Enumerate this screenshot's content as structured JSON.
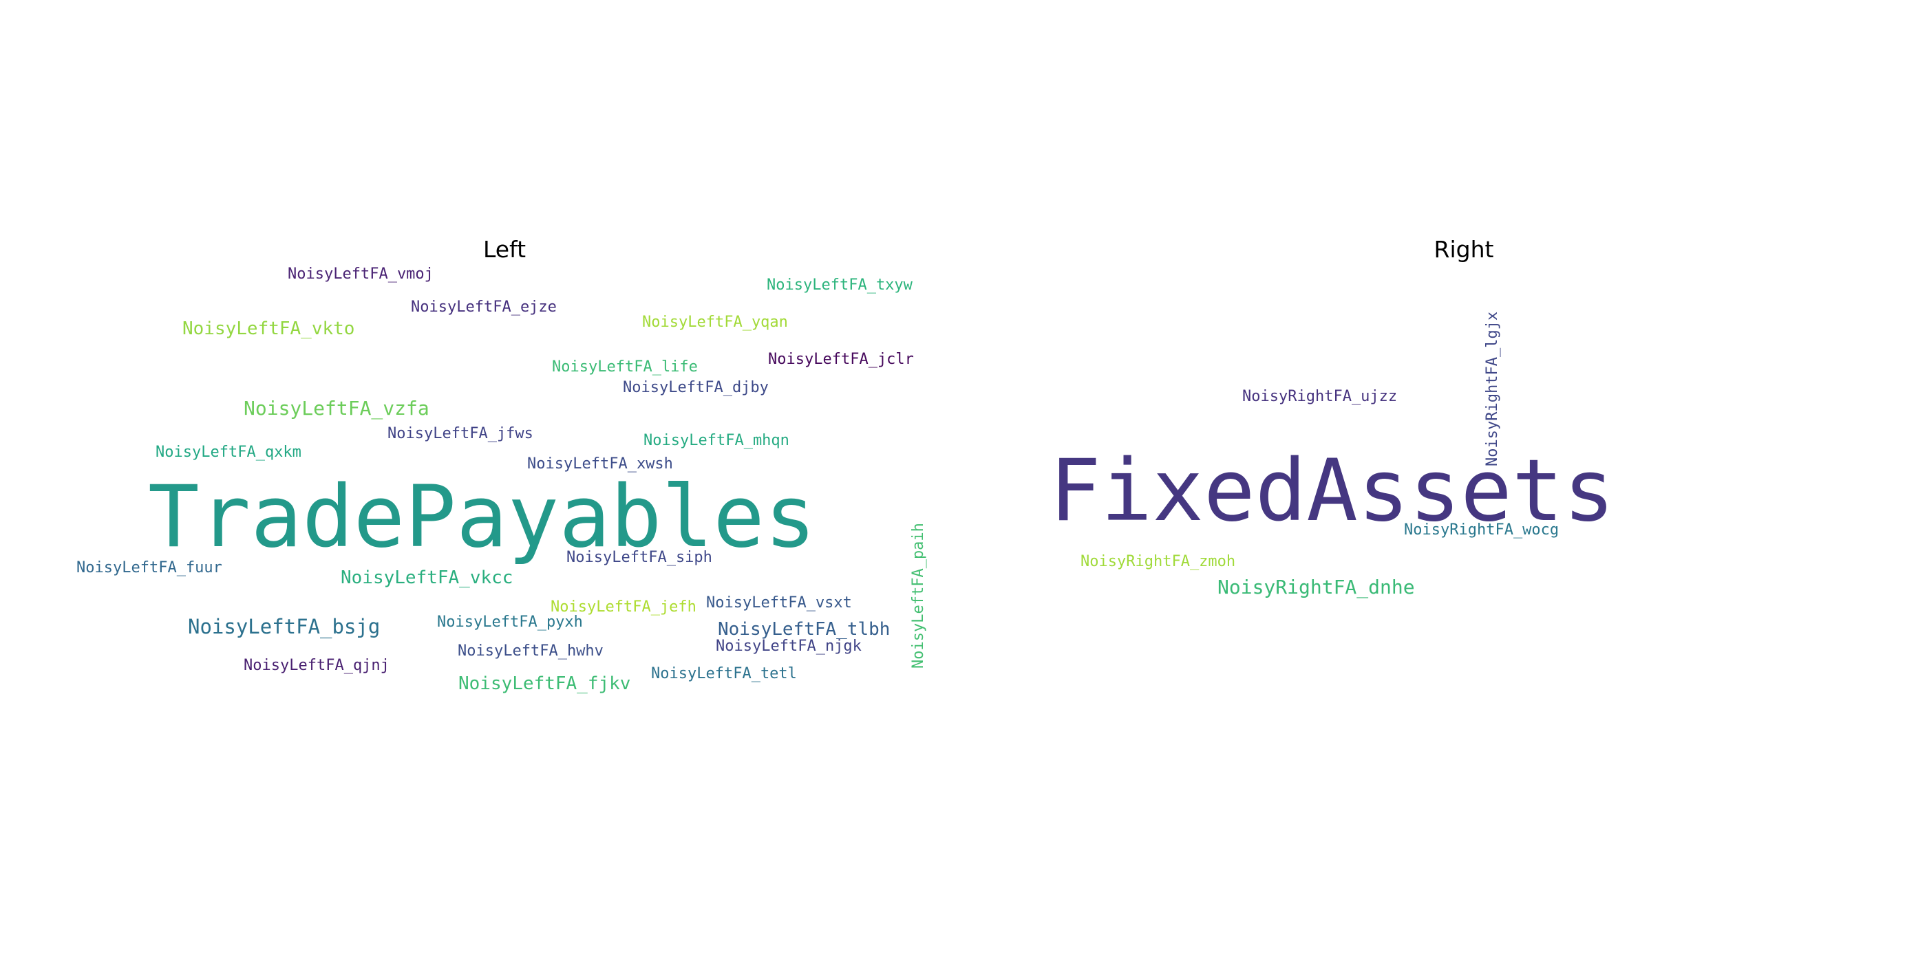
{
  "left": {
    "title": "Left",
    "words": [
      {
        "text": "TradePayables",
        "color": "#23998a"
      },
      {
        "text": "NoisyLeftFA_vmoj",
        "color": "#4a2374"
      },
      {
        "text": "NoisyLeftFA_ejze",
        "color": "#46317e"
      },
      {
        "text": "NoisyLeftFA_txyw",
        "color": "#2cb47c"
      },
      {
        "text": "NoisyLeftFA_vkto",
        "color": "#93d741"
      },
      {
        "text": "NoisyLeftFA_yqan",
        "color": "#a2da37"
      },
      {
        "text": "NoisyLeftFA_life",
        "color": "#3bbb75"
      },
      {
        "text": "NoisyLeftFA_jclr",
        "color": "#46085c"
      },
      {
        "text": "NoisyLeftFA_djby",
        "color": "#3e4a89"
      },
      {
        "text": "NoisyLeftFA_vzfa",
        "color": "#6ccd5a"
      },
      {
        "text": "NoisyLeftFA_jfws",
        "color": "#404387"
      },
      {
        "text": "NoisyLeftFA_mhqn",
        "color": "#25ab82"
      },
      {
        "text": "NoisyLeftFA_qxkm",
        "color": "#22a884"
      },
      {
        "text": "NoisyLeftFA_xwsh",
        "color": "#3d4d8a"
      },
      {
        "text": "NoisyLeftFA_fuur",
        "color": "#31688e"
      },
      {
        "text": "NoisyLeftFA_vkcc",
        "color": "#2aaf7f"
      },
      {
        "text": "NoisyLeftFA_siph",
        "color": "#3f4889"
      },
      {
        "text": "NoisyLeftFA_paih",
        "color": "#43bf71"
      },
      {
        "text": "NoisyLeftFA_bsjg",
        "color": "#2c718e"
      },
      {
        "text": "NoisyLeftFA_pyxh",
        "color": "#2a788e"
      },
      {
        "text": "NoisyLeftFA_jefh",
        "color": "#addc30"
      },
      {
        "text": "NoisyLeftFA_vsxt",
        "color": "#38598c"
      },
      {
        "text": "NoisyLeftFA_tlbh",
        "color": "#355f8d"
      },
      {
        "text": "NoisyLeftFA_hwhv",
        "color": "#3c4f8a"
      },
      {
        "text": "NoisyLeftFA_njgk",
        "color": "#414487"
      },
      {
        "text": "NoisyLeftFA_qjnj",
        "color": "#481f70"
      },
      {
        "text": "NoisyLeftFA_fjkv",
        "color": "#3dbc74"
      },
      {
        "text": "NoisyLeftFA_tetl",
        "color": "#2c728e"
      }
    ]
  },
  "right": {
    "title": "Right",
    "words": [
      {
        "text": "FixedAssets",
        "color": "#453781"
      },
      {
        "text": "NoisyRightFA_lgjx",
        "color": "#3f4788"
      },
      {
        "text": "NoisyRightFA_ujzz",
        "color": "#46337f"
      },
      {
        "text": "NoisyRightFA_wocg",
        "color": "#2a788e"
      },
      {
        "text": "NoisyRightFA_zmoh",
        "color": "#a0da39"
      },
      {
        "text": "NoisyRightFA_dnhe",
        "color": "#3aba76"
      }
    ]
  }
}
